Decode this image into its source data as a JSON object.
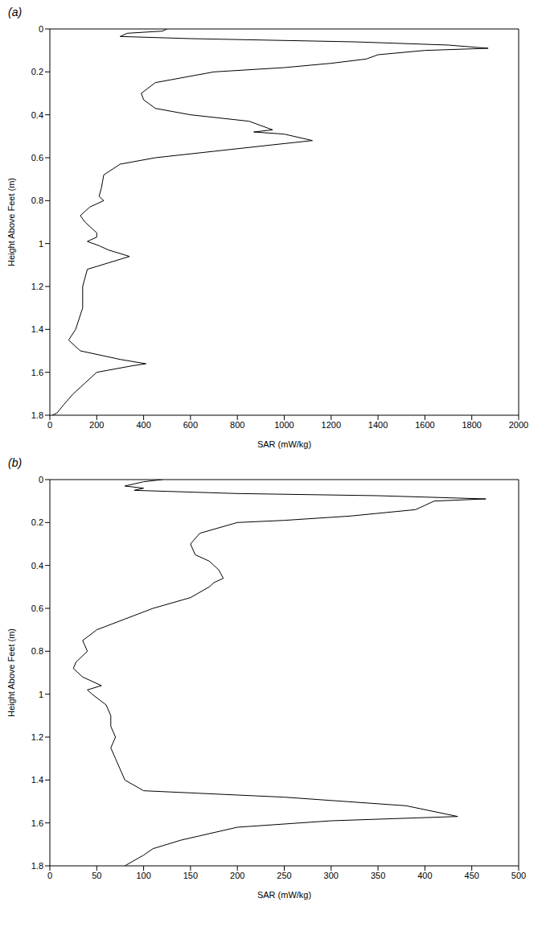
{
  "chart_data": [
    {
      "type": "line",
      "panel": "(a)",
      "x_label": "SAR (mW/kg)",
      "y_label": "Height Above Feet (m)",
      "color": "#000000",
      "grid": false,
      "xlim": [
        0,
        2000
      ],
      "xticks": [
        0,
        200,
        400,
        600,
        800,
        1000,
        1200,
        1400,
        1600,
        1800,
        2000
      ],
      "ylim": [
        0,
        1.8
      ],
      "yticks": [
        0,
        0.2,
        0.4,
        0.6,
        0.8,
        1,
        1.2,
        1.4,
        1.6,
        1.8
      ],
      "x": [
        500,
        480,
        330,
        300,
        600,
        1300,
        1700,
        1870,
        1600,
        1400,
        1350,
        1200,
        1000,
        700,
        450,
        390,
        400,
        450,
        600,
        850,
        900,
        950,
        870,
        1000,
        1120,
        950,
        700,
        450,
        300,
        230,
        220,
        210,
        230,
        170,
        130,
        150,
        200,
        200,
        160,
        210,
        250,
        340,
        250,
        160,
        140,
        140,
        110,
        80,
        130,
        300,
        410,
        350,
        200,
        150,
        130,
        100,
        60,
        30,
        10
      ],
      "y": [
        0,
        0.01,
        0.02,
        0.035,
        0.045,
        0.06,
        0.075,
        0.09,
        0.1,
        0.12,
        0.14,
        0.16,
        0.18,
        0.2,
        0.25,
        0.3,
        0.33,
        0.37,
        0.4,
        0.43,
        0.45,
        0.47,
        0.48,
        0.49,
        0.52,
        0.54,
        0.57,
        0.6,
        0.63,
        0.68,
        0.74,
        0.78,
        0.8,
        0.83,
        0.87,
        0.9,
        0.95,
        0.97,
        0.99,
        1.01,
        1.03,
        1.06,
        1.09,
        1.12,
        1.2,
        1.3,
        1.4,
        1.45,
        1.5,
        1.54,
        1.56,
        1.57,
        1.6,
        1.65,
        1.67,
        1.7,
        1.75,
        1.79,
        1.8
      ]
    },
    {
      "type": "line",
      "panel": "(b)",
      "x_label": "SAR (mW/kg)",
      "y_label": "Height Above Feet (m)",
      "color": "#000000",
      "grid": false,
      "xlim": [
        0,
        500
      ],
      "xticks": [
        0,
        50,
        100,
        150,
        200,
        250,
        300,
        350,
        400,
        450,
        500
      ],
      "ylim": [
        0,
        1.8
      ],
      "yticks": [
        0,
        0.2,
        0.4,
        0.6,
        0.8,
        1,
        1.2,
        1.4,
        1.6,
        1.8
      ],
      "x": [
        120,
        100,
        80,
        100,
        90,
        200,
        350,
        465,
        410,
        400,
        390,
        320,
        250,
        200,
        160,
        150,
        155,
        170,
        180,
        185,
        175,
        170,
        150,
        110,
        80,
        50,
        35,
        40,
        28,
        25,
        35,
        55,
        40,
        45,
        60,
        65,
        65,
        70,
        65,
        70,
        75,
        80,
        100,
        250,
        380,
        435,
        300,
        200,
        160,
        140,
        110,
        100,
        80
      ],
      "y": [
        0,
        0.01,
        0.03,
        0.04,
        0.05,
        0.065,
        0.075,
        0.09,
        0.1,
        0.12,
        0.14,
        0.17,
        0.19,
        0.2,
        0.25,
        0.3,
        0.35,
        0.38,
        0.42,
        0.46,
        0.48,
        0.5,
        0.55,
        0.6,
        0.65,
        0.7,
        0.75,
        0.8,
        0.85,
        0.88,
        0.92,
        0.96,
        0.98,
        1,
        1.05,
        1.1,
        1.15,
        1.2,
        1.25,
        1.3,
        1.35,
        1.4,
        1.45,
        1.48,
        1.52,
        1.57,
        1.59,
        1.62,
        1.66,
        1.68,
        1.72,
        1.75,
        1.8
      ]
    }
  ]
}
